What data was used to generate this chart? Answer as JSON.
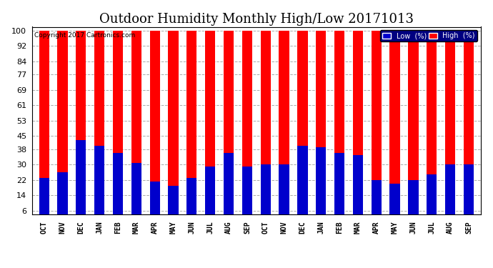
{
  "title": "Outdoor Humidity Monthly High/Low 20171013",
  "copyright": "Copyright 2017 Cartronics.com",
  "categories": [
    "OCT",
    "NOV",
    "DEC",
    "JAN",
    "FEB",
    "MAR",
    "APR",
    "MAY",
    "JUN",
    "JUL",
    "AUG",
    "SEP",
    "OCT",
    "NOV",
    "DEC",
    "JAN",
    "FEB",
    "MAR",
    "APR",
    "MAY",
    "JUN",
    "JUL",
    "AUG",
    "SEP"
  ],
  "high_values": [
    100,
    100,
    100,
    100,
    100,
    100,
    100,
    100,
    100,
    100,
    100,
    100,
    100,
    100,
    100,
    100,
    100,
    100,
    100,
    100,
    100,
    100,
    100,
    100
  ],
  "low_values": [
    23,
    26,
    43,
    40,
    36,
    31,
    21,
    19,
    23,
    29,
    36,
    29,
    30,
    30,
    40,
    39,
    36,
    35,
    22,
    20,
    22,
    25,
    30,
    30
  ],
  "high_color": "#ff0000",
  "low_color": "#0000cc",
  "bg_color": "#ffffff",
  "plot_bg_color": "#ffffff",
  "yticks": [
    6,
    14,
    22,
    30,
    38,
    45,
    53,
    61,
    69,
    77,
    84,
    92,
    100
  ],
  "ylim": [
    4,
    102
  ],
  "bar_width": 0.55,
  "title_fontsize": 13,
  "tick_fontsize": 8,
  "xlabel_fontsize": 7,
  "legend_low_label": "Low  (%)",
  "legend_high_label": "High  (%)"
}
